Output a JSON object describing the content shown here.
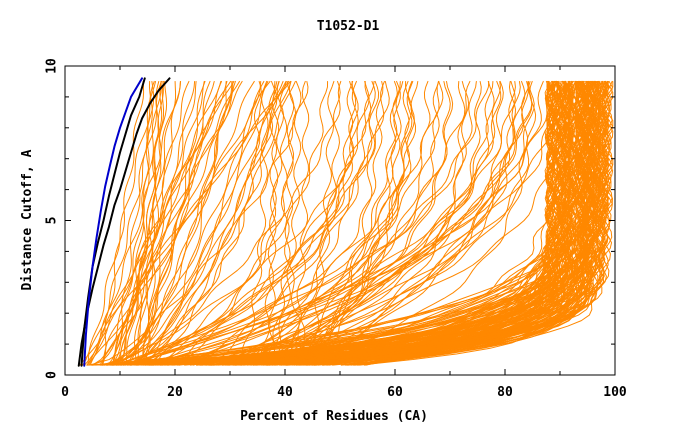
{
  "chart_data": {
    "type": "line",
    "title": "T1052-D1",
    "xlabel": "Percent of Residues (CA)",
    "ylabel": "Distance Cutoff, A",
    "xlim": [
      0,
      100
    ],
    "ylim": [
      0,
      10
    ],
    "x_ticks": [
      0,
      20,
      40,
      60,
      80,
      100
    ],
    "y_ticks": [
      0,
      5,
      10
    ],
    "x_tick_labels": [
      "0",
      "20",
      "40",
      "60",
      "80",
      "100"
    ],
    "y_tick_labels": [
      "0",
      "5",
      "10"
    ],
    "grid": false,
    "legend": "none",
    "colors": {
      "orange": "#ff8800",
      "black": "#000000",
      "blue": "#0000cc"
    },
    "series": [
      {
        "color": "#000000",
        "x": [
          2.5,
          3.0,
          4.0,
          5.0,
          6.0,
          7.0,
          8.0,
          9.0,
          10.0,
          11.0,
          12.0,
          13.0,
          14.0,
          15.5,
          17.0,
          19.0
        ],
        "y": [
          0.3,
          1.0,
          2.0,
          2.8,
          3.5,
          4.2,
          4.8,
          5.5,
          6.0,
          6.6,
          7.2,
          7.8,
          8.3,
          8.8,
          9.2,
          9.6
        ]
      },
      {
        "color": "#000000",
        "x": [
          3.0,
          3.5,
          4.2,
          5.0,
          6.0,
          7.0,
          8.0,
          9.0,
          10.0,
          11.0,
          12.0,
          13.5,
          14.5
        ],
        "y": [
          0.3,
          1.5,
          2.5,
          3.5,
          4.3,
          5.0,
          5.8,
          6.5,
          7.2,
          7.8,
          8.4,
          9.0,
          9.6
        ]
      },
      {
        "color": "#0000cc",
        "x": [
          3.5,
          3.8,
          4.3,
          5.0,
          5.7,
          6.5,
          7.3,
          8.2,
          9.0,
          10.0,
          11.0,
          12.0,
          13.0,
          14.0
        ],
        "y": [
          0.3,
          1.3,
          2.4,
          3.5,
          4.4,
          5.3,
          6.1,
          6.8,
          7.4,
          8.0,
          8.5,
          9.0,
          9.3,
          9.6
        ]
      }
    ]
  }
}
